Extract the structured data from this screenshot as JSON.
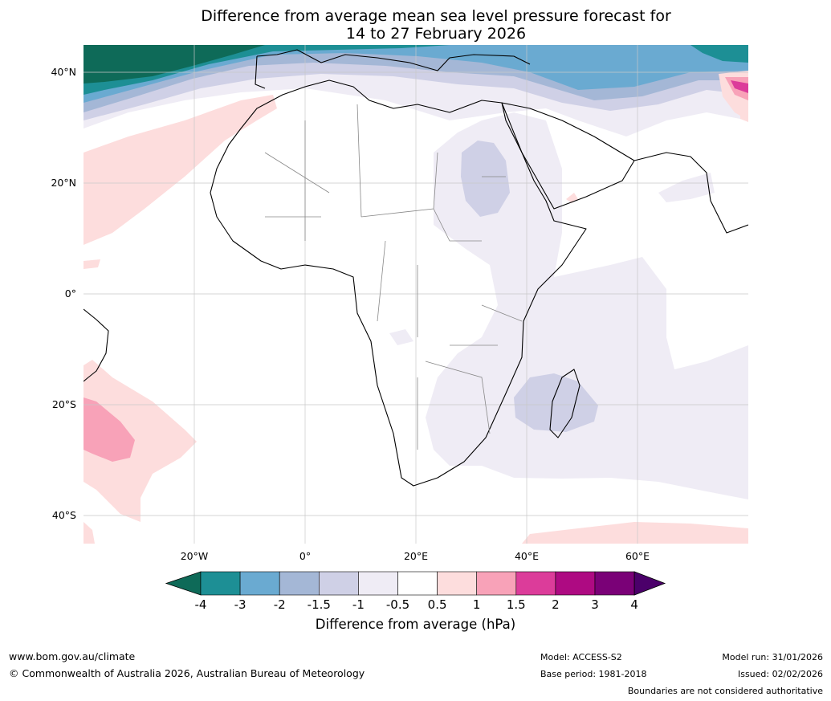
{
  "title": {
    "line1": "Difference from average mean sea level pressure forecast for",
    "line2": "14 to 27 February 2026"
  },
  "axes": {
    "lat_labels": [
      "40°N",
      "20°N",
      "0°",
      "20°S",
      "40°S"
    ],
    "lon_labels": [
      "20°W",
      "0°",
      "20°E",
      "40°E",
      "60°E"
    ]
  },
  "colorbar": {
    "ticks": [
      "-4",
      "-3",
      "-2",
      "-1.5",
      "-1",
      "-0.5",
      "0.5",
      "1",
      "1.5",
      "2",
      "3",
      "4"
    ],
    "colors": [
      "#0e6a58",
      "#1d8f95",
      "#6aaad1",
      "#a4b7d6",
      "#cfd0e6",
      "#efecf5",
      "#ffffff",
      "#fddddd",
      "#f8a2b8",
      "#dc3c9a",
      "#ae0a82",
      "#7a0177",
      "#4b006a"
    ],
    "title": "Difference from average (hPa)"
  },
  "colors": {
    "neg4": "#0e6a58",
    "neg3": "#1d8f95",
    "neg2": "#6aaad1",
    "neg15": "#a4b7d6",
    "neg1": "#cfd0e6",
    "neg05": "#efecf5",
    "pos05": "#fddddd",
    "pos1": "#f8a2b8",
    "pos15": "#dc3c9a",
    "pos2": "#ae0a82"
  },
  "footer": {
    "website": "www.bom.gov.au/climate",
    "copyright": "© Commonwealth of Australia 2026, Australian Bureau of Meteorology",
    "model": "Model: ACCESS-S2",
    "base_period": "Base period: 1981-2018",
    "model_run": "Model run: 31/01/2026",
    "issued": "Issued: 02/02/2026",
    "disclaimer": "Boundaries are not considered authoritative"
  }
}
